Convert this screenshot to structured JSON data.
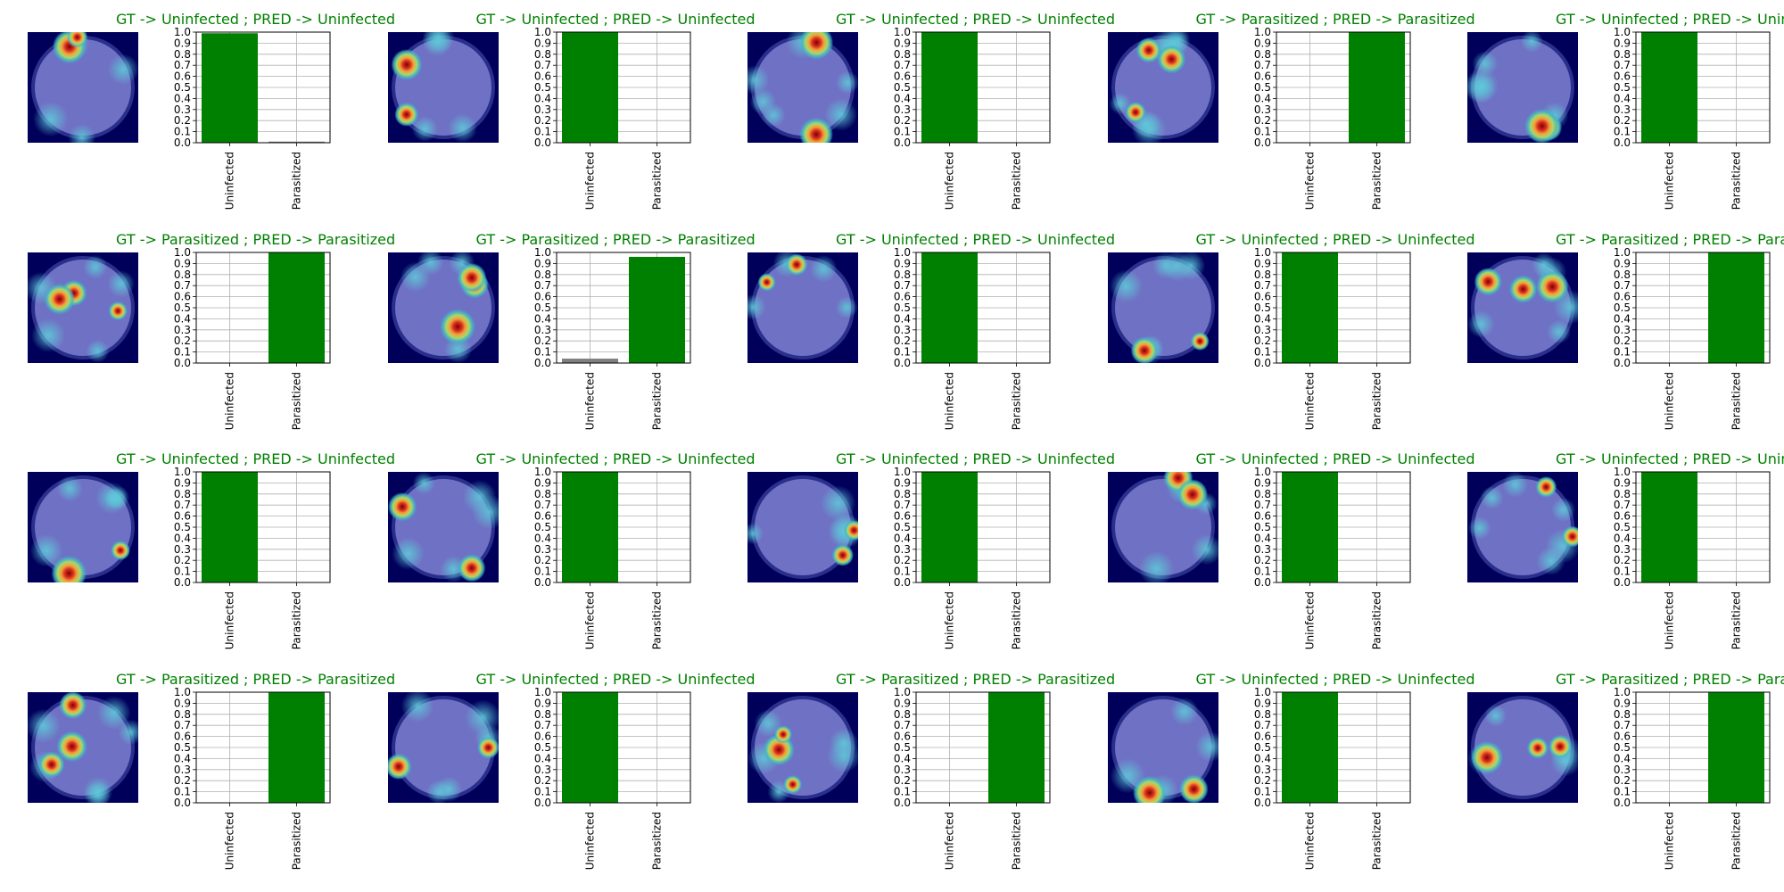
{
  "colors": {
    "title": "#008000",
    "bar_pred": "#008000",
    "bar_other": "#808080",
    "grid": "#b0b0b0",
    "heatmap_low": "#00005a",
    "heatmap_body": "#6f72c4",
    "heatmap_hot": [
      "#3fb7c7",
      "#a6d96a",
      "#f4a13a",
      "#d7301f",
      "#7f0000"
    ]
  },
  "chart_data": {
    "type": "bar",
    "description": "grid of Grad-CAM cell heatmaps each paired with a class-probability bar chart",
    "rows": 4,
    "cols": 5,
    "categories": [
      "Uninfected",
      "Parasitized"
    ],
    "ylim": [
      0,
      1.0
    ],
    "yticks": [
      "0.0",
      "0.1",
      "0.2",
      "0.3",
      "0.4",
      "0.5",
      "0.6",
      "0.7",
      "0.8",
      "0.9",
      "1.0"
    ],
    "grid": true,
    "panels": [
      {
        "title": "GT -> Uninfected ; PRED -> Uninfected",
        "values": [
          0.99,
          0.01
        ]
      },
      {
        "title": "GT -> Uninfected ; PRED -> Uninfected",
        "values": [
          1.0,
          0.0
        ]
      },
      {
        "title": "GT -> Uninfected ; PRED -> Uninfected",
        "values": [
          1.0,
          0.0
        ]
      },
      {
        "title": "GT -> Parasitized ; PRED -> Parasitized",
        "values": [
          0.0,
          1.0
        ]
      },
      {
        "title": "GT -> Uninfected ; PRED -> Uninfected",
        "values": [
          1.0,
          0.0
        ]
      },
      {
        "title": "GT -> Parasitized ; PRED -> Parasitized",
        "values": [
          0.0,
          1.0
        ]
      },
      {
        "title": "GT -> Parasitized ; PRED -> Parasitized",
        "values": [
          0.04,
          0.96
        ]
      },
      {
        "title": "GT -> Uninfected ; PRED -> Uninfected",
        "values": [
          1.0,
          0.0
        ]
      },
      {
        "title": "GT -> Uninfected ; PRED -> Uninfected",
        "values": [
          1.0,
          0.0
        ]
      },
      {
        "title": "GT -> Parasitized ; PRED -> Parasitized",
        "values": [
          0.0,
          1.0
        ]
      },
      {
        "title": "GT -> Uninfected ; PRED -> Uninfected",
        "values": [
          1.0,
          0.0
        ]
      },
      {
        "title": "GT -> Uninfected ; PRED -> Uninfected",
        "values": [
          1.0,
          0.0
        ]
      },
      {
        "title": "GT -> Uninfected ; PRED -> Uninfected",
        "values": [
          1.0,
          0.0
        ]
      },
      {
        "title": "GT -> Uninfected ; PRED -> Uninfected",
        "values": [
          1.0,
          0.0
        ]
      },
      {
        "title": "GT -> Uninfected ; PRED -> Uninfected",
        "values": [
          1.0,
          0.0
        ]
      },
      {
        "title": "GT -> Parasitized ; PRED -> Parasitized",
        "values": [
          0.0,
          1.0
        ]
      },
      {
        "title": "GT -> Uninfected ; PRED -> Uninfected",
        "values": [
          1.0,
          0.0
        ]
      },
      {
        "title": "GT -> Parasitized ; PRED -> Parasitized",
        "values": [
          0.0,
          1.0
        ]
      },
      {
        "title": "GT -> Uninfected ; PRED -> Uninfected",
        "values": [
          1.0,
          0.0
        ]
      },
      {
        "title": "GT -> Parasitized ; PRED -> Parasitized",
        "values": [
          0.0,
          1.0
        ]
      }
    ]
  }
}
